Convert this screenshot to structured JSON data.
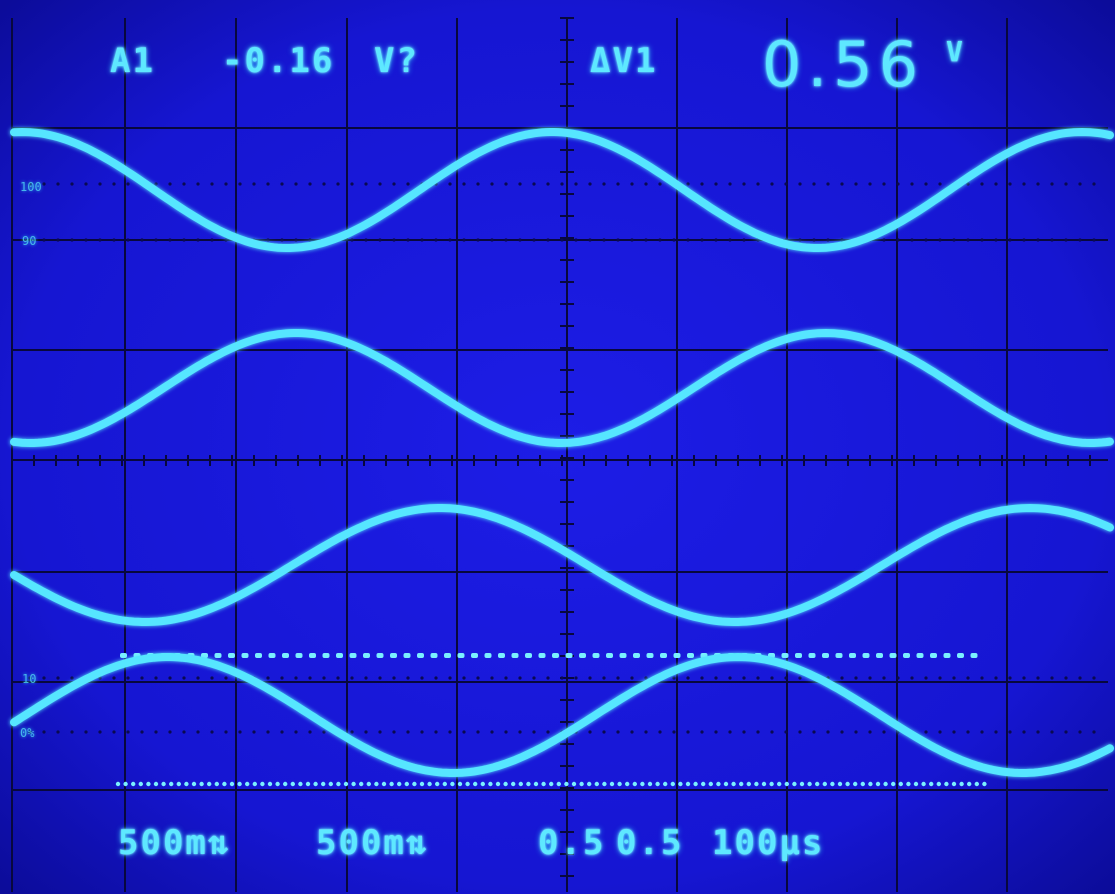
{
  "readout": {
    "channel": "A1",
    "cursor_value": "-0.16",
    "cursor_unit": "V?",
    "delta_label": "ΔV1",
    "delta_value": "0.56",
    "delta_unit": "V"
  },
  "scale": {
    "ch1": "500m",
    "ch2": "500m",
    "probe1": "0.5",
    "probe2": "0.5",
    "timebase": "100µs"
  },
  "graticule_marks": {
    "top_100": "100",
    "top_90": "90",
    "bottom_10": "10",
    "bottom_0": "0%"
  },
  "colors": {
    "screen": "#1616d8",
    "trace": "#56e6ff",
    "grid": "#0a0a48"
  }
}
